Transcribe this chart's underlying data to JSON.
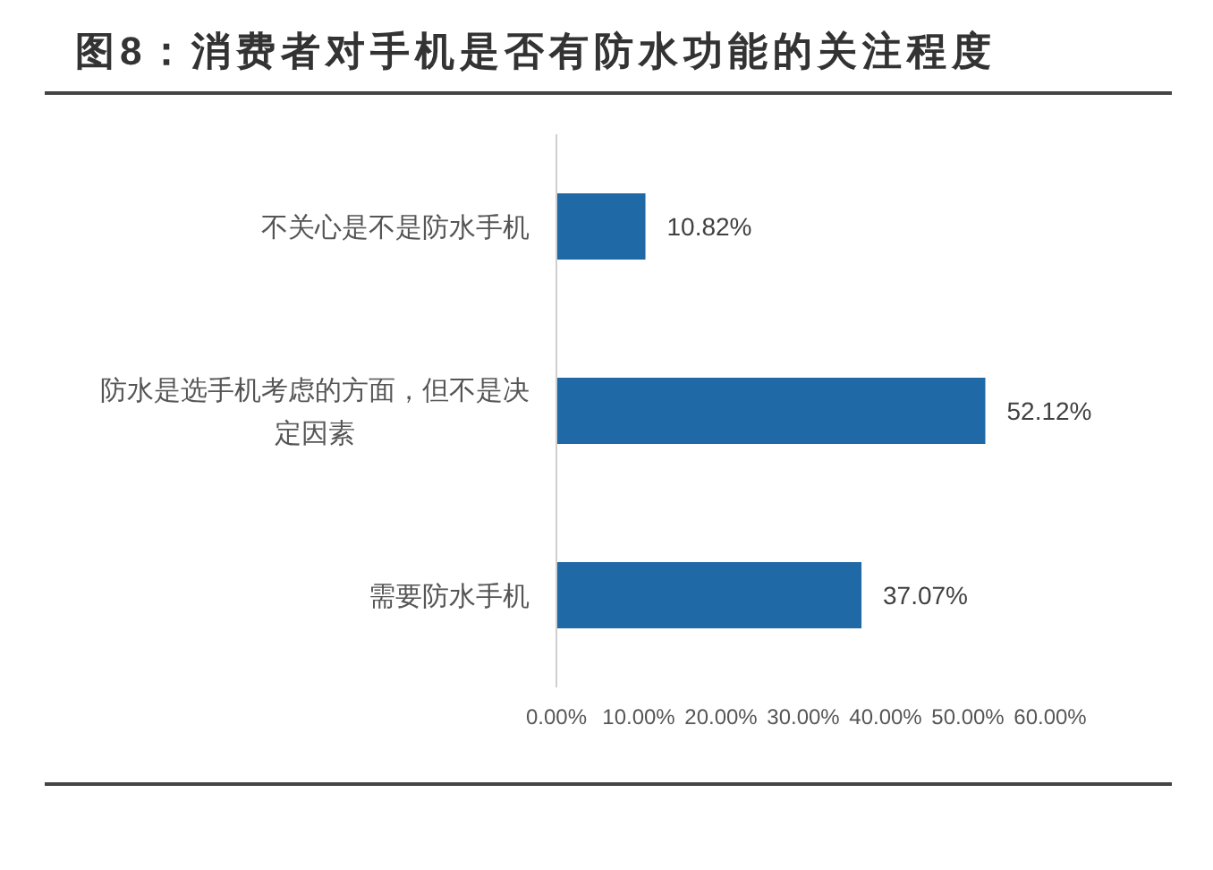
{
  "chart_data": {
    "type": "bar",
    "orientation": "horizontal",
    "title": "图8：消费者对手机是否有防水功能的关注程度",
    "categories": [
      "不关心是不是防水手机",
      "防水是选手机考虑的方面，但不是决定因素",
      "需要防水手机"
    ],
    "values": [
      10.82,
      52.12,
      37.07
    ],
    "value_labels": [
      "10.82%",
      "52.12%",
      "37.07%"
    ],
    "color": "#1f69a6",
    "xlim": [
      0,
      60
    ],
    "xticks": [
      {
        "value": 0,
        "label": "0.00%"
      },
      {
        "value": 10,
        "label": "10.00%"
      },
      {
        "value": 20,
        "label": "20.00%"
      },
      {
        "value": 30,
        "label": "30.00%"
      },
      {
        "value": 40,
        "label": "40.00%"
      },
      {
        "value": 50,
        "label": "50.00%"
      },
      {
        "value": 60,
        "label": "60.00%"
      }
    ]
  }
}
